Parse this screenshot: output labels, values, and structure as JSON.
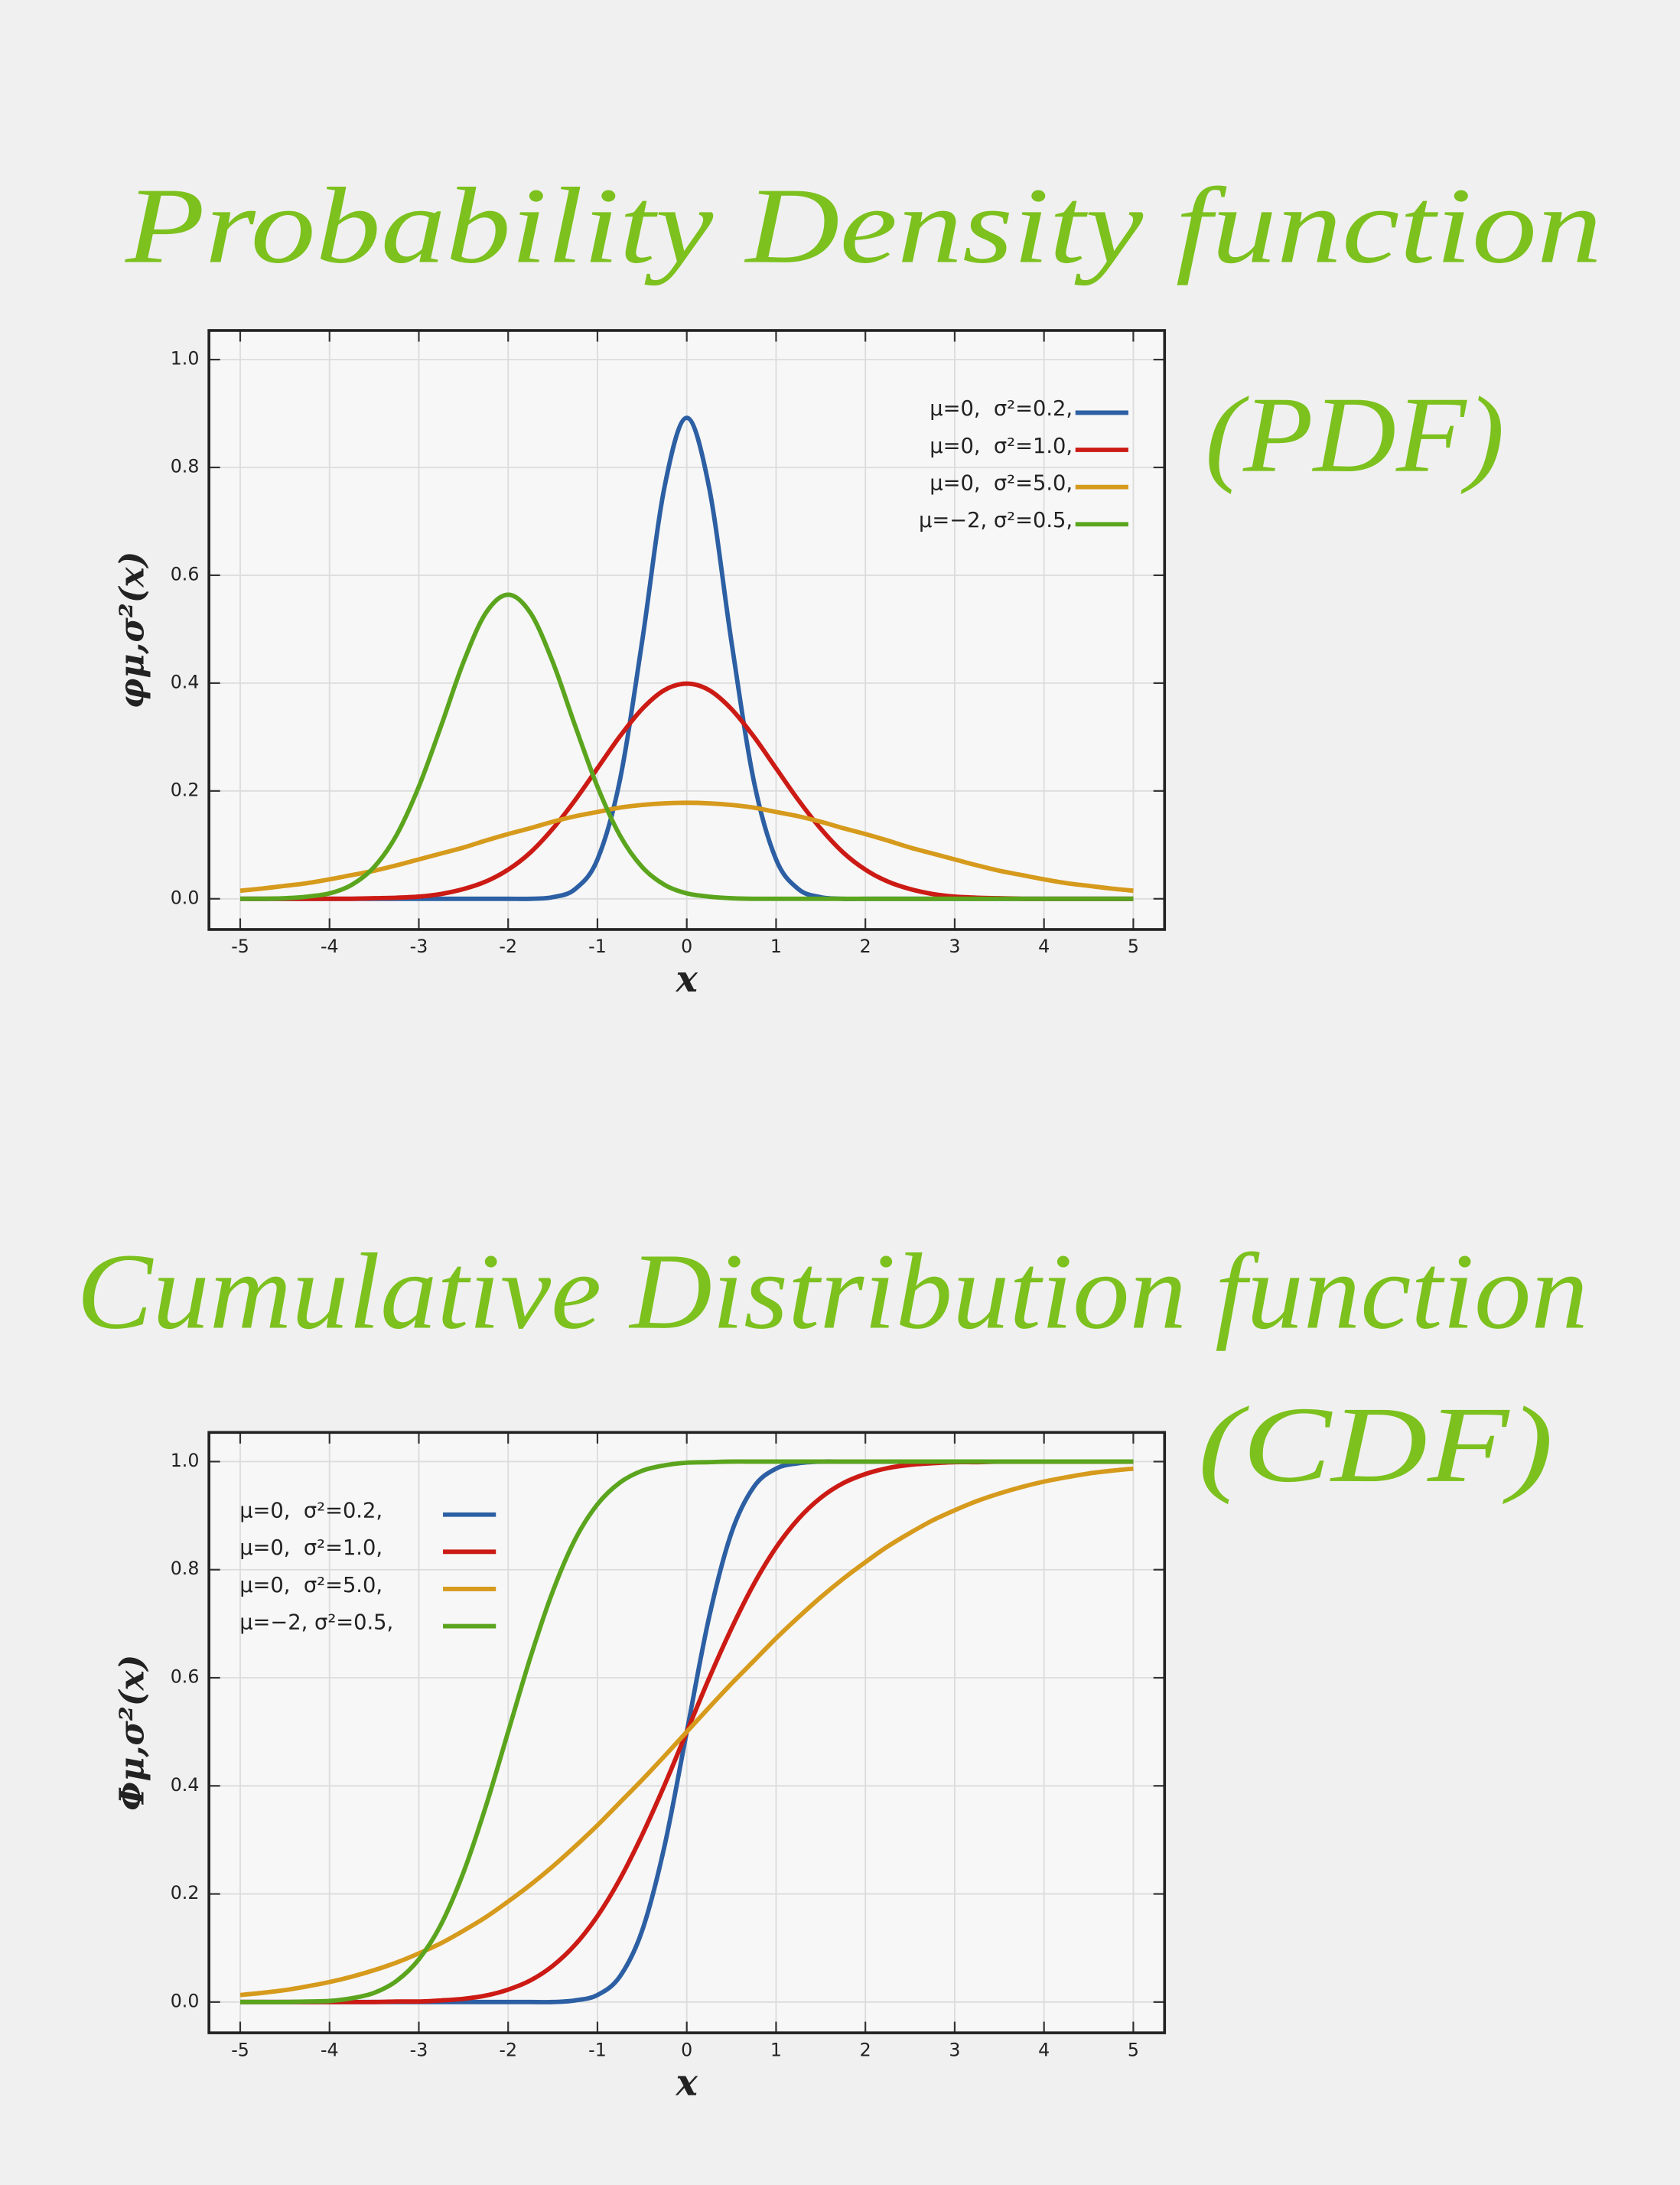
{
  "chart_data": [
    {
      "type": "line",
      "title": "Probability Density function",
      "subtitle": "(PDF)",
      "xlabel": "x",
      "ylabel": "φμ,σ²(x)",
      "x": [
        -5,
        -4.75,
        -4.5,
        -4.25,
        -4,
        -3.75,
        -3.5,
        -3.25,
        -3,
        -2.75,
        -2.5,
        -2.25,
        -2,
        -1.75,
        -1.5,
        -1.25,
        -1,
        -0.75,
        -0.5,
        -0.25,
        0,
        0.25,
        0.5,
        0.75,
        1,
        1.25,
        1.5,
        1.75,
        2,
        2.25,
        2.5,
        2.75,
        3,
        3.25,
        3.5,
        3.75,
        4,
        4.25,
        4.5,
        4.75,
        5
      ],
      "xlim": [
        -5.35,
        5.35
      ],
      "xticks": [
        -5,
        -4,
        -3,
        -2,
        -1,
        0,
        1,
        2,
        3,
        4,
        5
      ],
      "ylim": [
        -0.057,
        1.054
      ],
      "yticks": [
        {
          "value": 0,
          "label": "0.0"
        },
        0.2,
        0.4,
        0.6,
        0.8,
        {
          "value": 1,
          "label": "1.0"
        }
      ],
      "grid": true,
      "legend": "upper right",
      "series": [
        {
          "name": "μ=0,  σ²=0.2,",
          "color": "#2c5fa3",
          "values": [
            0,
            0,
            0,
            0,
            0,
            0,
            0,
            0,
            0,
            0,
            0,
            0,
            0,
            0,
            0.003,
            0.018,
            0.073,
            0.219,
            0.477,
            0.763,
            0.892,
            0.763,
            0.477,
            0.219,
            0.073,
            0.018,
            0.003,
            0,
            0,
            0,
            0,
            0,
            0,
            0,
            0,
            0,
            0,
            0,
            0,
            0,
            0
          ]
        },
        {
          "name": "μ=0,  σ²=1.0,",
          "color": "#cc1a14",
          "values": [
            0,
            0,
            0,
            0,
            0,
            0,
            0.001,
            0.002,
            0.004,
            0.009,
            0.018,
            0.032,
            0.054,
            0.086,
            0.13,
            0.183,
            0.242,
            0.301,
            0.352,
            0.387,
            0.399,
            0.387,
            0.352,
            0.301,
            0.242,
            0.183,
            0.13,
            0.086,
            0.054,
            0.032,
            0.018,
            0.009,
            0.004,
            0.002,
            0.001,
            0,
            0,
            0,
            0,
            0,
            0
          ]
        },
        {
          "name": "μ=0,  σ²=5.0,",
          "color": "#d69a1c",
          "values": [
            0.015,
            0.019,
            0.024,
            0.029,
            0.036,
            0.044,
            0.052,
            0.062,
            0.073,
            0.084,
            0.095,
            0.108,
            0.12,
            0.131,
            0.143,
            0.153,
            0.161,
            0.169,
            0.174,
            0.177,
            0.178,
            0.177,
            0.174,
            0.169,
            0.161,
            0.153,
            0.143,
            0.131,
            0.12,
            0.108,
            0.095,
            0.084,
            0.073,
            0.062,
            0.052,
            0.044,
            0.036,
            0.029,
            0.024,
            0.019,
            0.015
          ]
        },
        {
          "name": "μ=−2, σ²=0.5,",
          "color": "#5ba51e",
          "values": [
            0,
            0,
            0.001,
            0.004,
            0.01,
            0.026,
            0.059,
            0.118,
            0.208,
            0.321,
            0.439,
            0.53,
            0.564,
            0.53,
            0.439,
            0.321,
            0.208,
            0.118,
            0.059,
            0.026,
            0.01,
            0.004,
            0.001,
            0,
            0,
            0,
            0,
            0,
            0,
            0,
            0,
            0,
            0,
            0,
            0,
            0,
            0,
            0,
            0,
            0,
            0
          ]
        }
      ]
    },
    {
      "type": "line",
      "title": "Cumulative Distribution function",
      "subtitle": "(CDF)",
      "xlabel": "x",
      "ylabel": "Φμ,σ²(x)",
      "x": [
        -5,
        -4.75,
        -4.5,
        -4.25,
        -4,
        -3.75,
        -3.5,
        -3.25,
        -3,
        -2.75,
        -2.5,
        -2.25,
        -2,
        -1.75,
        -1.5,
        -1.25,
        -1,
        -0.75,
        -0.5,
        -0.25,
        0,
        0.25,
        0.5,
        0.75,
        1,
        1.25,
        1.5,
        1.75,
        2,
        2.25,
        2.5,
        2.75,
        3,
        3.25,
        3.5,
        3.75,
        4,
        4.25,
        4.5,
        4.75,
        5
      ],
      "xlim": [
        -5.35,
        5.35
      ],
      "xticks": [
        -5,
        -4,
        -3,
        -2,
        -1,
        0,
        1,
        2,
        3,
        4,
        5
      ],
      "ylim": [
        -0.057,
        1.054
      ],
      "yticks": [
        {
          "value": 0,
          "label": "0.0"
        },
        0.2,
        0.4,
        0.6,
        0.8,
        {
          "value": 1,
          "label": "1.0"
        }
      ],
      "grid": true,
      "legend": "upper left",
      "series": [
        {
          "name": "μ=0,  σ²=0.2,",
          "color": "#2c5fa3",
          "values": [
            0,
            0,
            0,
            0,
            0,
            0,
            0,
            0,
            0,
            0,
            0,
            0,
            0,
            0,
            0,
            0.003,
            0.013,
            0.047,
            0.132,
            0.288,
            0.5,
            0.712,
            0.868,
            0.953,
            0.987,
            0.997,
            1,
            1,
            1,
            1,
            1,
            1,
            1,
            1,
            1,
            1,
            1,
            1,
            1,
            1,
            1
          ]
        },
        {
          "name": "μ=0,  σ²=1.0,",
          "color": "#cc1a14",
          "values": [
            0,
            0,
            0,
            0,
            0,
            0,
            0,
            0.001,
            0.001,
            0.003,
            0.006,
            0.012,
            0.023,
            0.04,
            0.067,
            0.106,
            0.159,
            0.227,
            0.309,
            0.401,
            0.5,
            0.599,
            0.691,
            0.773,
            0.841,
            0.894,
            0.933,
            0.96,
            0.977,
            0.988,
            0.994,
            0.997,
            0.999,
            0.999,
            1,
            1,
            1,
            1,
            1,
            1,
            1
          ]
        },
        {
          "name": "μ=0,  σ²=5.0,",
          "color": "#d69a1c",
          "values": [
            0.013,
            0.017,
            0.022,
            0.029,
            0.037,
            0.047,
            0.059,
            0.073,
            0.09,
            0.109,
            0.132,
            0.157,
            0.186,
            0.217,
            0.251,
            0.288,
            0.327,
            0.369,
            0.411,
            0.455,
            0.5,
            0.545,
            0.589,
            0.631,
            0.673,
            0.712,
            0.749,
            0.783,
            0.814,
            0.843,
            0.868,
            0.891,
            0.91,
            0.927,
            0.941,
            0.953,
            0.963,
            0.971,
            0.978,
            0.983,
            0.987
          ]
        },
        {
          "name": "μ=−2, σ²=0.5,",
          "color": "#5ba51e",
          "values": [
            0,
            0,
            0,
            0.001,
            0.002,
            0.007,
            0.017,
            0.039,
            0.079,
            0.144,
            0.24,
            0.362,
            0.5,
            0.638,
            0.76,
            0.856,
            0.921,
            0.961,
            0.983,
            0.993,
            0.998,
            0.999,
            1,
            1,
            1,
            1,
            1,
            1,
            1,
            1,
            1,
            1,
            1,
            1,
            1,
            1,
            1,
            1,
            1,
            1,
            1
          ]
        }
      ]
    }
  ]
}
